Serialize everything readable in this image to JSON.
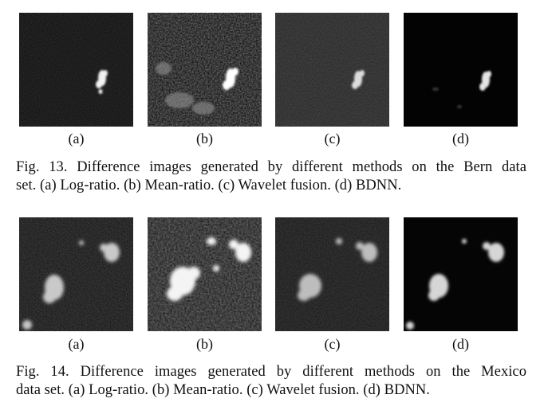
{
  "fig13": {
    "labels": [
      "(a)",
      "(b)",
      "(c)",
      "(d)"
    ],
    "caption_line1": "Fig. 13.   Difference images generated by different methods on the Bern data",
    "caption_line2": "set. (a) Log-ratio. (b) Mean-ratio. (c) Wavelet fusion. (d) BDNN."
  },
  "fig14": {
    "labels": [
      "(a)",
      "(b)",
      "(c)",
      "(d)"
    ],
    "caption_line1": "Fig. 14.   Difference images generated by different methods on the Mexico",
    "caption_line2": "data set. (a) Log-ratio. (b) Mean-ratio. (c) Wavelet fusion. (d) BDNN."
  }
}
